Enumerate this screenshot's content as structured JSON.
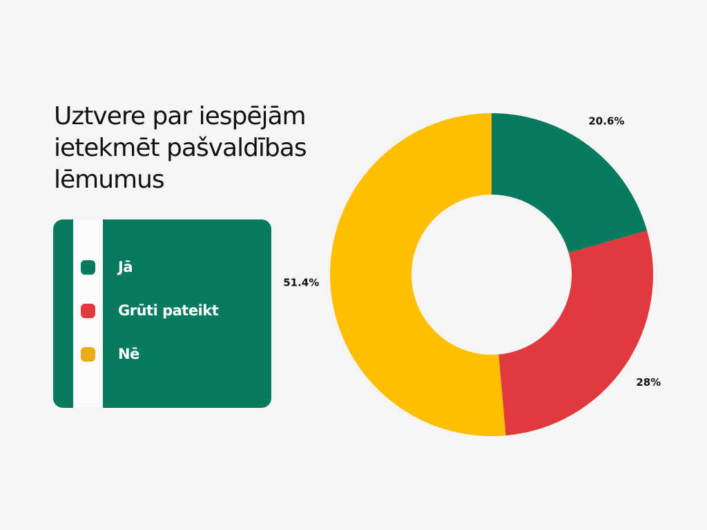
{
  "title": "Uztvere par iespējām ietekmēt pašvaldības lēmumus",
  "legend": {
    "items": [
      {
        "label": "Jā",
        "color": "#067b5f"
      },
      {
        "label": "Grūti pateikt",
        "color": "#e03a3e"
      },
      {
        "label": "Nē",
        "color": "#e8ab1a"
      }
    ]
  },
  "chart_data": {
    "type": "pie",
    "title": "Uztvere par iespējām ietekmēt pašvaldības lēmumus",
    "categories": [
      "Jā",
      "Grūti pateikt",
      "Nē"
    ],
    "values": [
      20.6,
      28,
      51.4
    ],
    "labels": [
      "20.6%",
      "28%",
      "51.4%"
    ],
    "colors": [
      "#067b5f",
      "#e03a3e",
      "#fdbf00"
    ],
    "donut": true,
    "legend_position": "left"
  }
}
